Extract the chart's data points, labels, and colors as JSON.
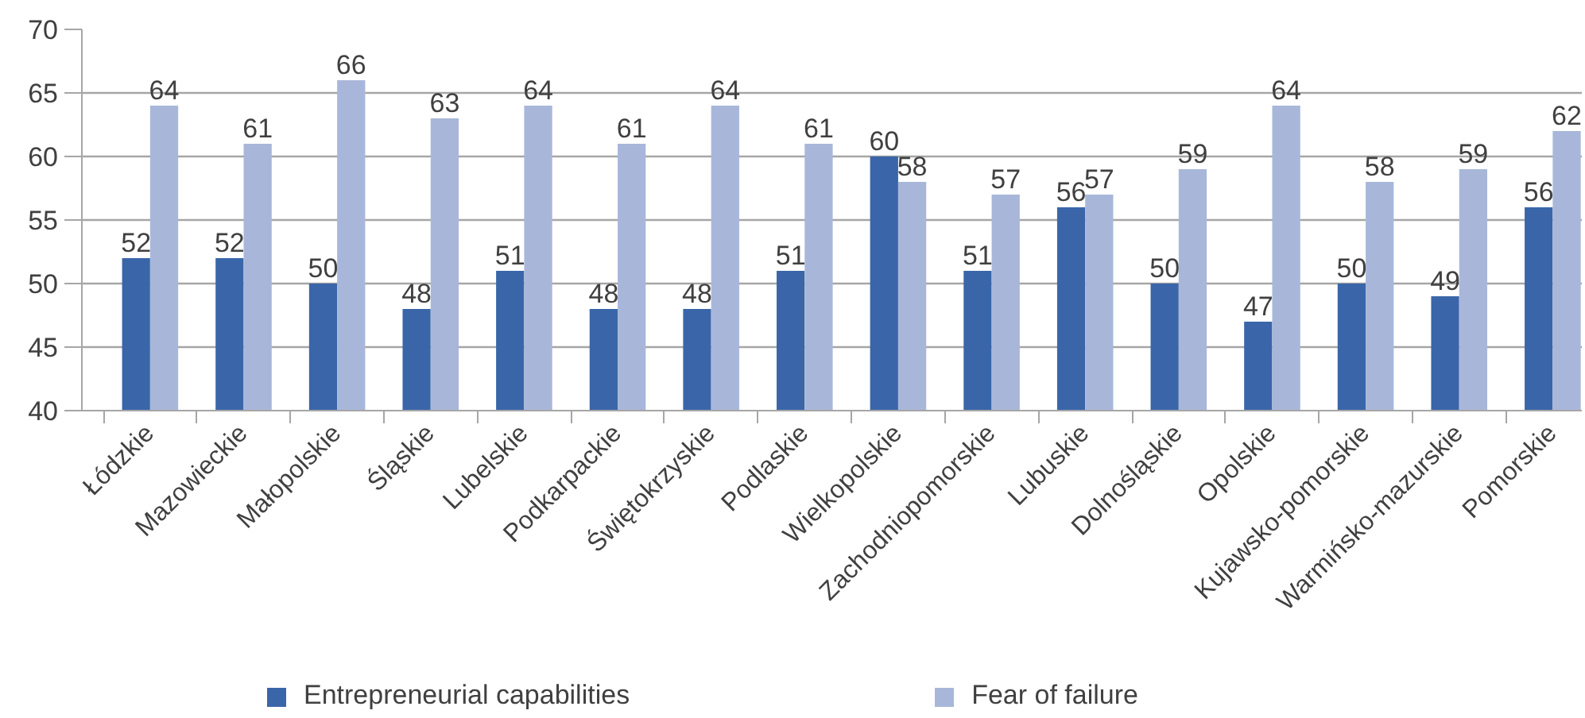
{
  "chart_data": {
    "type": "bar",
    "categories": [
      "Łódzkie",
      "Mazowieckie",
      "Małopolskie",
      "Śląskie",
      "Lubelskie",
      "Podkarpackie",
      "Świętokrzyskie",
      "Podlaskie",
      "Wielkopolskie",
      "Zachodniopomorskie",
      "Lubuskie",
      "Dolnośląskie",
      "Opolskie",
      "Kujawsko-pomorskie",
      "Warmińsko-mazurskie",
      "Pomorskie"
    ],
    "series": [
      {
        "name": "Entrepreneurial capabilities",
        "color": "#3a66a9",
        "values": [
          52,
          52,
          50,
          48,
          51,
          48,
          48,
          51,
          60,
          51,
          56,
          50,
          47,
          50,
          49,
          56
        ]
      },
      {
        "name": "Fear of failure",
        "color": "#a8b7d9",
        "values": [
          64,
          61,
          66,
          63,
          64,
          61,
          64,
          61,
          58,
          57,
          57,
          59,
          64,
          58,
          59,
          62
        ]
      }
    ],
    "data_labels": true,
    "ylim": [
      40,
      70
    ],
    "yticks": [
      40,
      45,
      50,
      55,
      60,
      65,
      70
    ],
    "grid": "y",
    "legend": "bottom"
  }
}
